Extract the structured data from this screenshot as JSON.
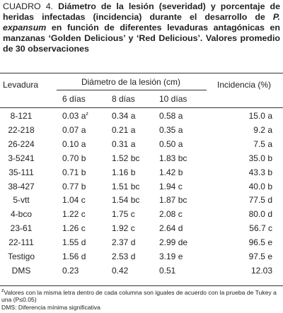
{
  "caption": {
    "label": "CUADRO 4.",
    "text1": " Diámetro de la lesión (severidad) y porcentaje de heridas infectadas (incidencia) durante el desarrollo de ",
    "italic": "P. expansum",
    "text2": " en función de diferentes levaduras antagónicas en manzanas ‘Golden Delicious’ y ‘Red Delicious’. Valores promedio de 30 observaciones"
  },
  "table": {
    "header": {
      "col1": "Levadura",
      "group": "Diámetro de la lesión (cm)",
      "sub": [
        "6 días",
        "8 días",
        "10 días"
      ],
      "last": "Incidencia (%)"
    },
    "note_mark": "z",
    "rows": [
      [
        "8-121",
        "0.03 a",
        "0.34 a",
        "0.58 a",
        "15.0 a"
      ],
      [
        "22-218",
        "0.07 a",
        "0.21 a",
        "0.35 a",
        "9.2 a"
      ],
      [
        "26-224",
        "0.10 a",
        "0.31 a",
        "0.50 a",
        "7.5 a"
      ],
      [
        "3-5241",
        "0.70 b",
        "1.52 bc",
        "1.83 bc",
        "35.0 b"
      ],
      [
        "35-111",
        "0.71 b",
        "1.16 b",
        "1.42 b",
        "43.3 b"
      ],
      [
        "38-427",
        "0.77 b",
        "1.51 bc",
        "1.94 c",
        "40.0 b"
      ],
      [
        "5-vtt",
        "1.04 c",
        "1.54 bc",
        "1.87 bc",
        "77.5 d"
      ],
      [
        "4-bco",
        "1.22 c",
        "1.75 c",
        "2.08 c",
        "80.0 d"
      ],
      [
        "23-61",
        "1.26 c",
        "1.92 c",
        "2.64 d",
        "56.7 c"
      ],
      [
        "22-111",
        "1.55 d",
        "2.37 d",
        "2.99 de",
        "96.5 e"
      ],
      [
        "Testigo",
        "1.56 d",
        "2.53 d",
        "3.19 e",
        "97.5 e"
      ],
      [
        "DMS",
        "0.23",
        "0.42",
        "0.51",
        "12.03"
      ]
    ]
  },
  "footnotes": [
    "Valores con la misma letra dentro de cada columna son iguales de acuerdo con la prueba de Tukey a una (P≤0.05)",
    "DMS: Diferencia mínima significativa"
  ]
}
